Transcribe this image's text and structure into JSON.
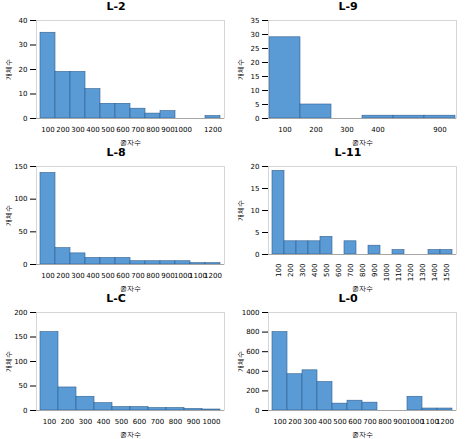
{
  "chart_data": [
    {
      "type": "bar",
      "title": "L-2",
      "x_label": "종자수",
      "y_label": "개체수",
      "color": "#5b9bd5",
      "categories": [
        "100",
        "200",
        "300",
        "400",
        "500",
        "600",
        "700",
        "800",
        "900",
        "1000",
        null,
        "1200"
      ],
      "values": [
        35,
        19,
        19,
        12,
        6,
        6,
        4,
        2,
        3,
        0,
        0,
        1
      ],
      "ylim": [
        0,
        40
      ],
      "yticks": [
        0,
        10,
        20,
        30,
        40
      ],
      "grid": false
    },
    {
      "type": "bar",
      "title": "L-9",
      "x_label": "종자수",
      "y_label": "개체수",
      "color": "#5b9bd5",
      "categories": [
        "100",
        "200",
        "300",
        "400",
        null,
        "900"
      ],
      "values": [
        29,
        5,
        0,
        1,
        1,
        1
      ],
      "ylim": [
        0,
        35
      ],
      "yticks": [
        0,
        5,
        10,
        15,
        20,
        25,
        30,
        35
      ],
      "grid": false
    },
    {
      "type": "bar",
      "title": "L-8",
      "x_label": "종자수",
      "y_label": "개체수",
      "color": "#5b9bd5",
      "categories": [
        "100",
        "200",
        "300",
        "400",
        "500",
        "600",
        "700",
        "800",
        "900",
        "1000",
        "1100",
        "1200"
      ],
      "values": [
        140,
        25,
        17,
        10,
        10,
        10,
        5,
        5,
        5,
        5,
        2,
        2
      ],
      "ylim": [
        0,
        150
      ],
      "yticks": [
        0,
        50,
        100,
        150
      ],
      "grid": false
    },
    {
      "type": "bar",
      "title": "L-11",
      "x_label": "종자수",
      "y_label": "개체수",
      "color": "#5b9bd5",
      "categories": [
        "100",
        "200",
        "300",
        "400",
        "500",
        "600",
        "700",
        "800",
        "900",
        "1000",
        "1100",
        "1200",
        "1300",
        "1400",
        "1500"
      ],
      "values": [
        19,
        3,
        3,
        3,
        4,
        0,
        3,
        0,
        2,
        0,
        1,
        0,
        0,
        1,
        1
      ],
      "ylim": [
        0,
        20
      ],
      "yticks": [
        0,
        5,
        10,
        15,
        20
      ],
      "grid": false
    },
    {
      "type": "bar",
      "title": "L-C",
      "x_label": "종자수",
      "y_label": "개체수",
      "color": "#5b9bd5",
      "categories": [
        "100",
        "200",
        "300",
        "400",
        "500",
        "600",
        "700",
        "800",
        "900",
        "1000"
      ],
      "values": [
        160,
        47,
        28,
        15,
        7,
        7,
        5,
        5,
        3,
        2
      ],
      "ylim": [
        0,
        200
      ],
      "yticks": [
        0,
        50,
        100,
        150,
        200
      ],
      "grid": false
    },
    {
      "type": "bar",
      "title": "L-0",
      "x_label": "종자수",
      "y_label": "개체수",
      "color": "#5b9bd5",
      "categories": [
        "100",
        "200",
        "300",
        "400",
        "500",
        "600",
        "700",
        "800",
        "900",
        "1000",
        "1100",
        "1200"
      ],
      "values": [
        800,
        370,
        410,
        290,
        70,
        100,
        80,
        0,
        0,
        140,
        20,
        20
      ],
      "ylim": [
        0,
        1000
      ],
      "yticks": [
        0,
        200,
        400,
        600,
        800,
        1000
      ],
      "grid": false
    }
  ]
}
